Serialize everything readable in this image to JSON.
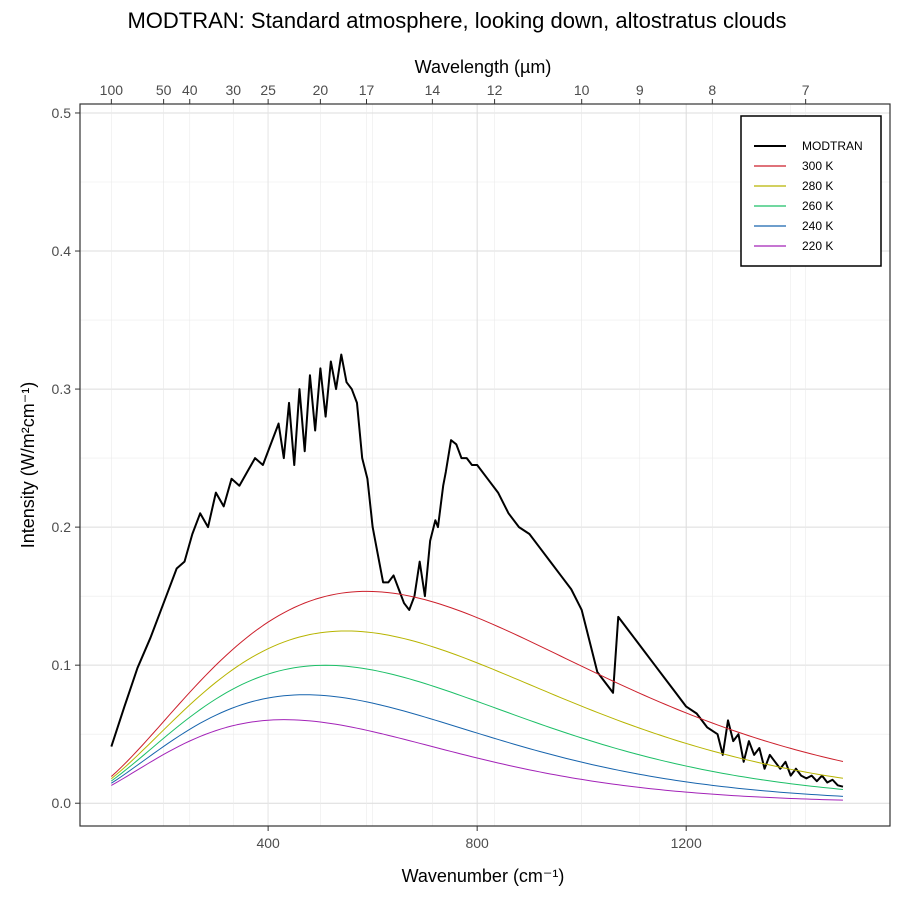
{
  "chart_data": {
    "type": "line",
    "title": "MODTRAN: Standard atmosphere, looking down, altostratus clouds",
    "xlabel": "Wavenumber (cm⁻¹)",
    "ylabel": "Intensity (W/m²cm⁻¹)",
    "x2label": "Wavelength (µm)",
    "xlim": [
      0,
      1500
    ],
    "ylim": [
      0,
      0.5
    ],
    "x_ticks": [
      400,
      800,
      1200
    ],
    "y_ticks": [
      0.0,
      0.1,
      0.2,
      0.3,
      0.4,
      0.5
    ],
    "y_tick_labels": [
      "0.0",
      "0.1",
      "0.2",
      "0.3",
      "0.4",
      "0.5"
    ],
    "x2_ticks": [
      100,
      50,
      40,
      30,
      25,
      20,
      17,
      14,
      12,
      10,
      9,
      8,
      7
    ],
    "grid": true,
    "legend_position": "top-right",
    "series": [
      {
        "name": "MODTRAN",
        "color": "#000000",
        "x": [
          100,
          125,
          150,
          175,
          200,
          225,
          240,
          255,
          270,
          285,
          300,
          315,
          330,
          345,
          360,
          375,
          390,
          405,
          420,
          430,
          440,
          450,
          460,
          470,
          480,
          490,
          500,
          510,
          520,
          530,
          540,
          550,
          560,
          570,
          580,
          590,
          600,
          610,
          620,
          630,
          640,
          650,
          660,
          670,
          680,
          690,
          700,
          710,
          720,
          725,
          730,
          735,
          740,
          750,
          760,
          770,
          780,
          790,
          800,
          820,
          840,
          860,
          880,
          900,
          920,
          940,
          960,
          980,
          1000,
          1010,
          1020,
          1030,
          1040,
          1050,
          1060,
          1070,
          1080,
          1100,
          1120,
          1140,
          1160,
          1180,
          1200,
          1220,
          1240,
          1260,
          1270,
          1280,
          1290,
          1300,
          1310,
          1320,
          1330,
          1340,
          1350,
          1360,
          1370,
          1380,
          1390,
          1400,
          1410,
          1420,
          1430,
          1440,
          1450,
          1460,
          1470,
          1480,
          1490,
          1500
        ],
        "y": [
          0.041,
          0.07,
          0.098,
          0.12,
          0.145,
          0.17,
          0.175,
          0.195,
          0.21,
          0.2,
          0.225,
          0.215,
          0.235,
          0.23,
          0.24,
          0.25,
          0.245,
          0.26,
          0.275,
          0.25,
          0.29,
          0.245,
          0.3,
          0.255,
          0.31,
          0.27,
          0.315,
          0.28,
          0.32,
          0.3,
          0.325,
          0.305,
          0.3,
          0.29,
          0.25,
          0.235,
          0.2,
          0.18,
          0.16,
          0.16,
          0.165,
          0.155,
          0.145,
          0.14,
          0.15,
          0.175,
          0.15,
          0.19,
          0.205,
          0.2,
          0.215,
          0.23,
          0.24,
          0.263,
          0.26,
          0.25,
          0.25,
          0.245,
          0.245,
          0.235,
          0.225,
          0.21,
          0.2,
          0.195,
          0.185,
          0.175,
          0.165,
          0.155,
          0.14,
          0.125,
          0.11,
          0.095,
          0.09,
          0.085,
          0.08,
          0.135,
          0.13,
          0.12,
          0.11,
          0.1,
          0.09,
          0.08,
          0.07,
          0.065,
          0.055,
          0.05,
          0.035,
          0.06,
          0.045,
          0.05,
          0.03,
          0.045,
          0.035,
          0.04,
          0.025,
          0.035,
          0.03,
          0.025,
          0.03,
          0.02,
          0.025,
          0.02,
          0.018,
          0.02,
          0.016,
          0.02,
          0.015,
          0.017,
          0.013,
          0.012
        ]
      },
      {
        "name": "300 K",
        "color": "#cc1f2b",
        "temperature": 300
      },
      {
        "name": "280 K",
        "color": "#b7b400",
        "temperature": 280
      },
      {
        "name": "260 K",
        "color": "#1cbf67",
        "temperature": 260
      },
      {
        "name": "240 K",
        "color": "#1764ad",
        "temperature": 240
      },
      {
        "name": "220 K",
        "color": "#a323b8",
        "temperature": 220
      }
    ]
  }
}
